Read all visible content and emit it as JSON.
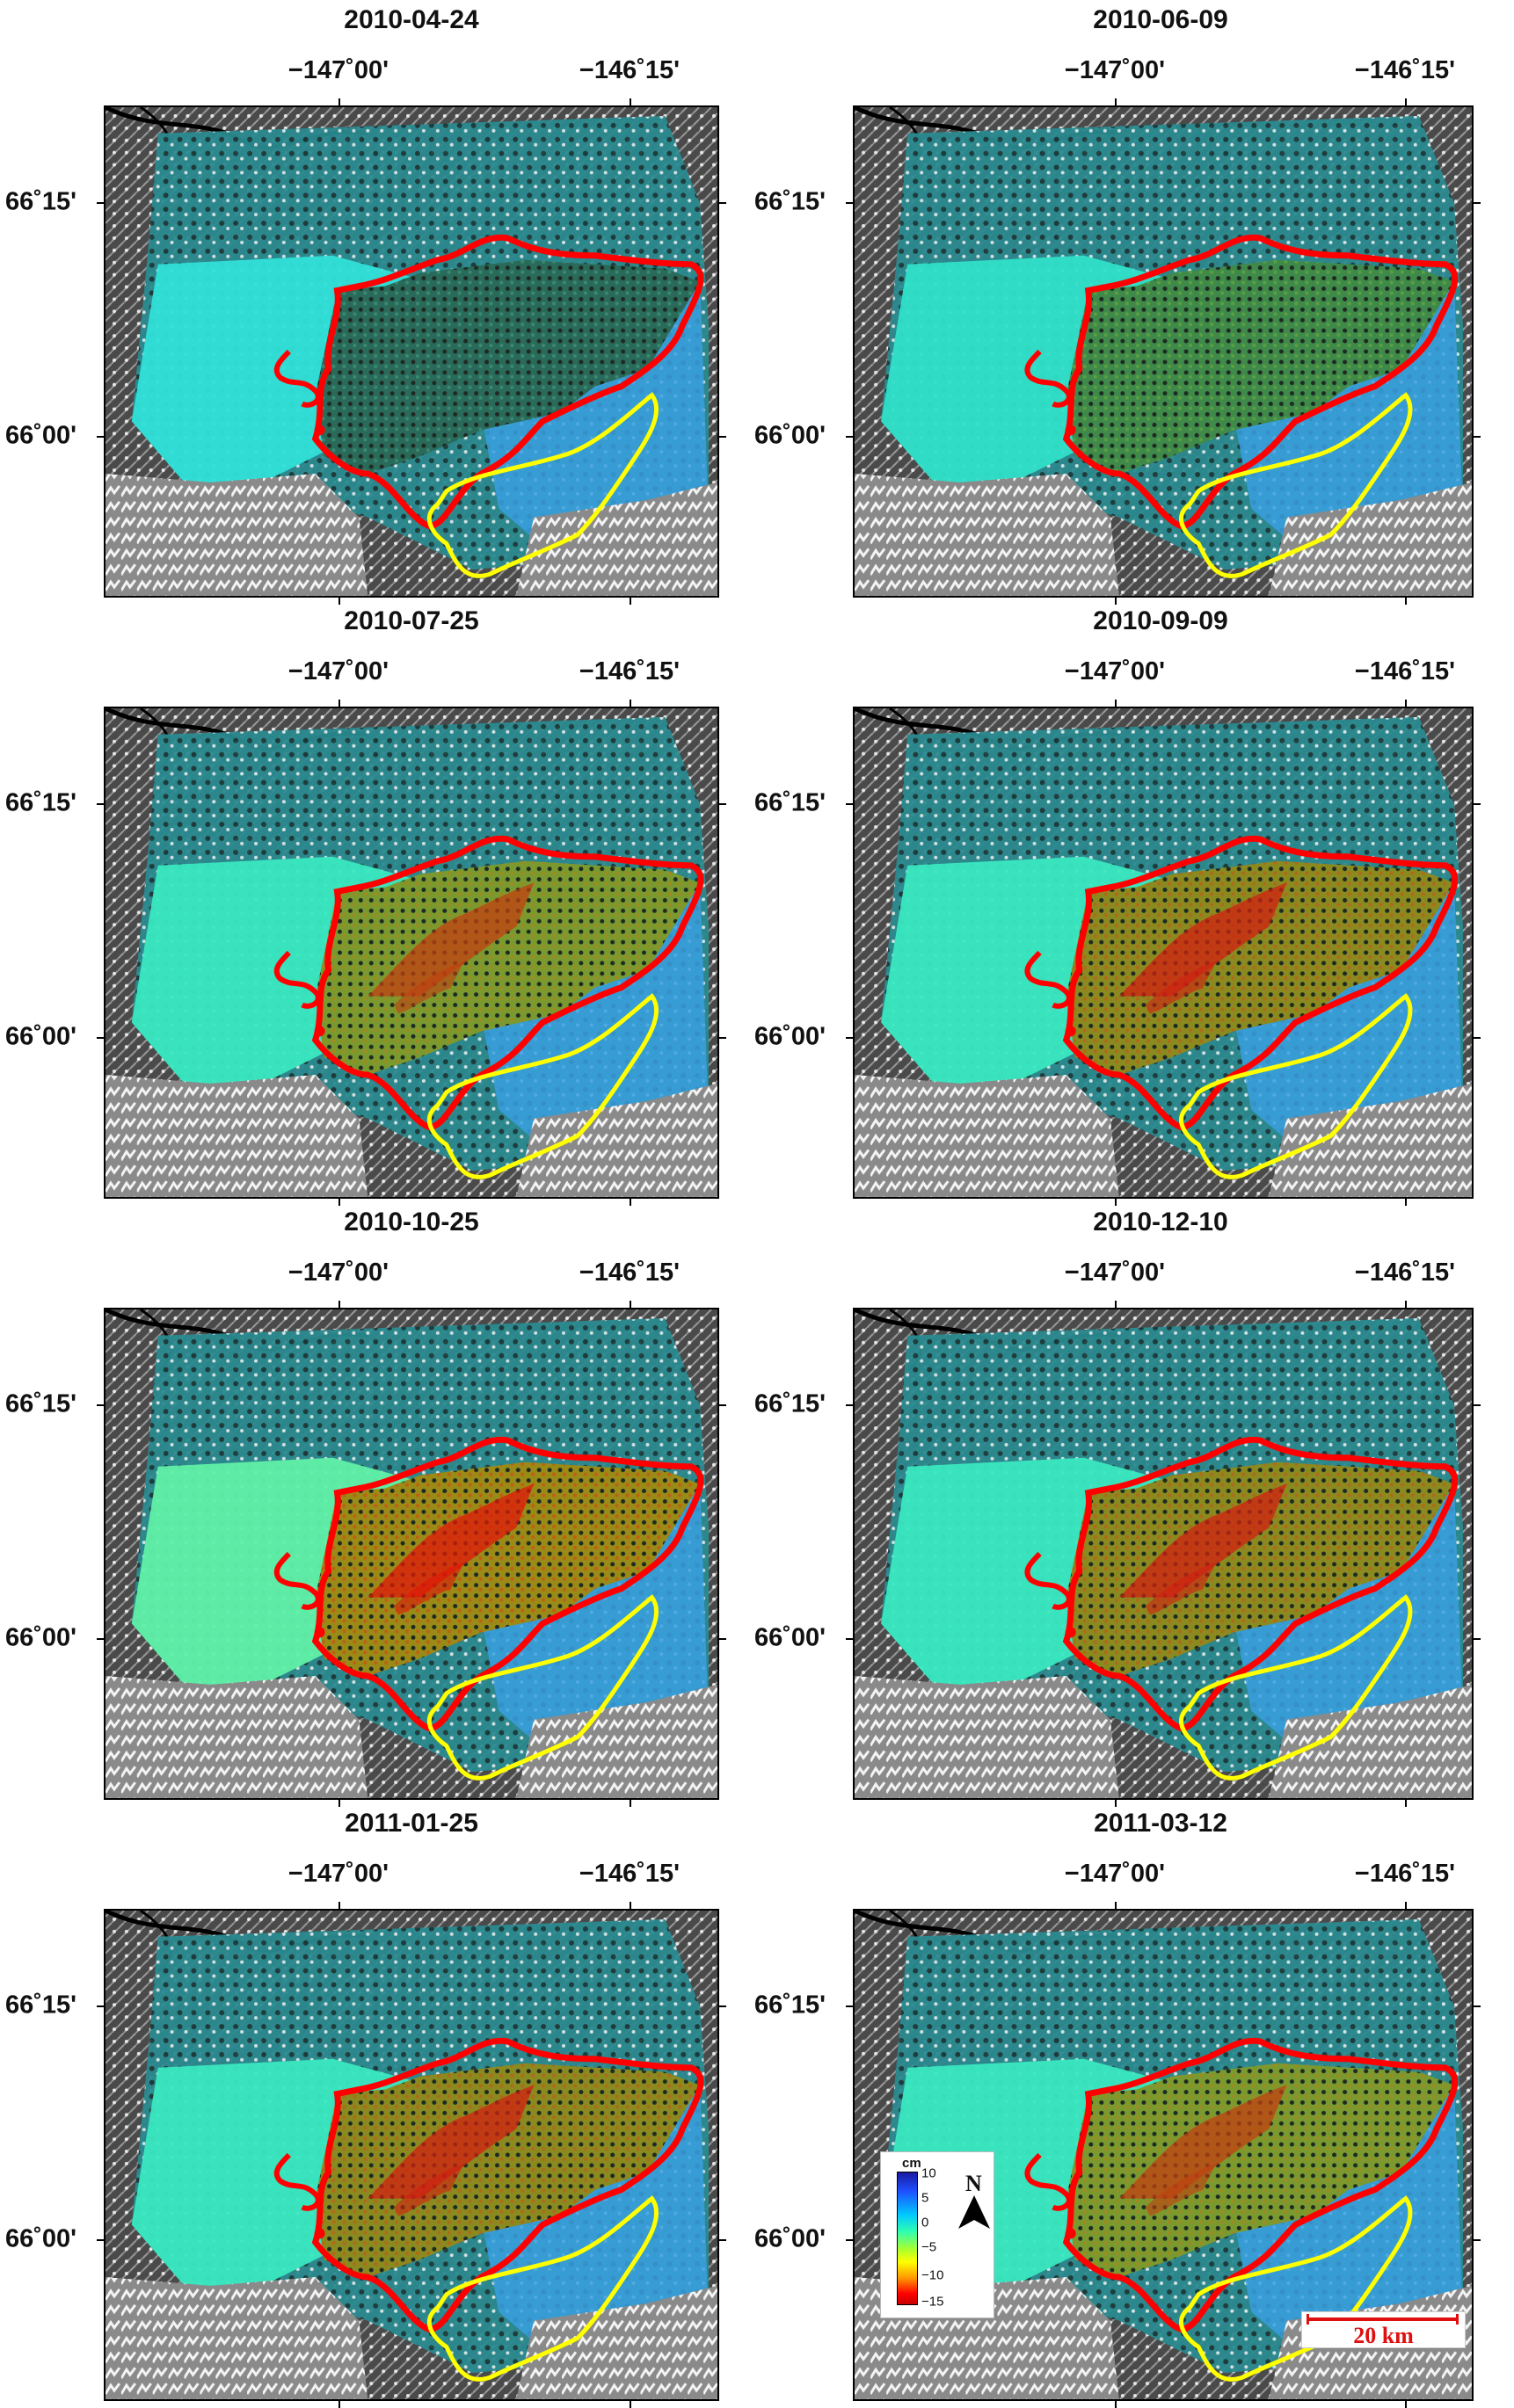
{
  "panels": [
    {
      "date": "2010-04-24",
      "stage": 0
    },
    {
      "date": "2010-06-09",
      "stage": 1
    },
    {
      "date": "2010-07-25",
      "stage": 2
    },
    {
      "date": "2010-09-09",
      "stage": 3
    },
    {
      "date": "2010-10-25",
      "stage": 4
    },
    {
      "date": "2010-12-10",
      "stage": 3
    },
    {
      "date": "2011-01-25",
      "stage": 3
    },
    {
      "date": "2011-03-12",
      "stage": 2
    }
  ],
  "axes": {
    "lon_labels": [
      "−147˚00'",
      "−146˚15'"
    ],
    "lat_labels": [
      "66˚15'",
      "66˚00'"
    ]
  },
  "legend": {
    "unit": "cm",
    "ticks": [
      "10",
      "5",
      "0",
      "−5",
      "−10",
      "−15"
    ]
  },
  "north_label": "N",
  "scale_bar": {
    "label": "20 km"
  },
  "colors": {
    "fire_perimeter": "#ff0000",
    "second_perimeter": "#ffff00"
  }
}
